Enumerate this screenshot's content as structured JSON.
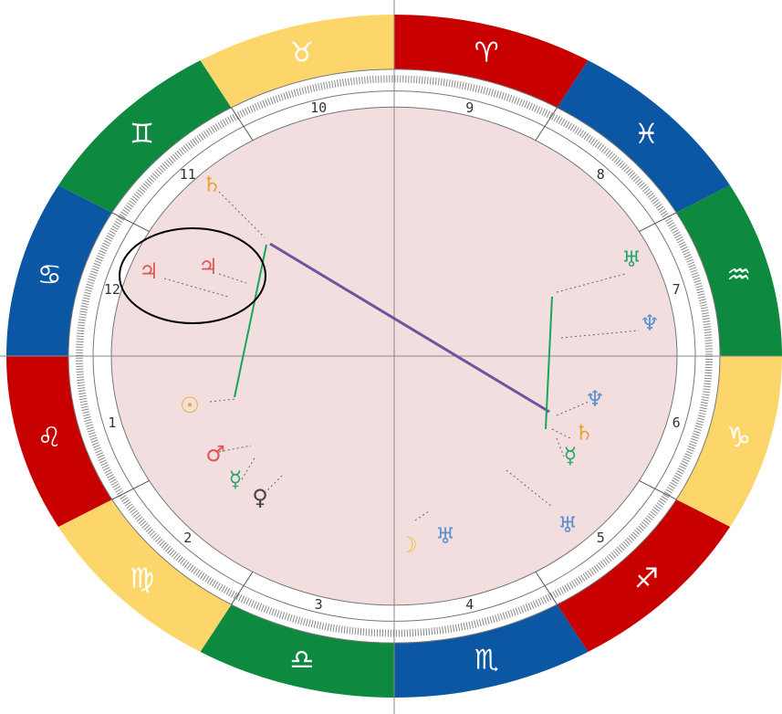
{
  "colors": {
    "red": "#c80000",
    "yellow": "#fcd66a",
    "blue": "#0b57a3",
    "green": "#0d8a3f",
    "inner_fill": "#f2dede",
    "aspect_blue_purple": "#6a559e",
    "aspect_green": "#1aa55c",
    "highlight": "#000000"
  },
  "zodiac": [
    {
      "sign": "aries",
      "glyph": "♈",
      "color": "red"
    },
    {
      "sign": "pisces",
      "glyph": "♓",
      "color": "blue"
    },
    {
      "sign": "aquarius",
      "glyph": "♒",
      "color": "green"
    },
    {
      "sign": "capricorn",
      "glyph": "♑",
      "color": "yellow"
    },
    {
      "sign": "sagittarius",
      "glyph": "♐",
      "color": "red"
    },
    {
      "sign": "scorpio",
      "glyph": "♏",
      "color": "blue"
    },
    {
      "sign": "libra",
      "glyph": "♎",
      "color": "green"
    },
    {
      "sign": "virgo",
      "glyph": "♍",
      "color": "yellow"
    },
    {
      "sign": "leo",
      "glyph": "♌",
      "color": "red"
    },
    {
      "sign": "cancer",
      "glyph": "♋",
      "color": "blue"
    },
    {
      "sign": "gemini",
      "glyph": "♊",
      "color": "green"
    },
    {
      "sign": "taurus",
      "glyph": "♉",
      "color": "yellow"
    }
  ],
  "houses": [
    {
      "number": "1"
    },
    {
      "number": "2"
    },
    {
      "number": "3"
    },
    {
      "number": "4"
    },
    {
      "number": "5"
    },
    {
      "number": "6"
    },
    {
      "number": "7"
    },
    {
      "number": "8"
    },
    {
      "number": "9"
    },
    {
      "number": "10"
    },
    {
      "number": "11"
    },
    {
      "number": "12"
    }
  ],
  "planets": [
    {
      "name": "saturn-upper",
      "glyph": "♄",
      "color": "#e8a33b"
    },
    {
      "name": "jupiter-1",
      "glyph": "♃",
      "color": "#e05555"
    },
    {
      "name": "jupiter-2",
      "glyph": "♃",
      "color": "#e05555"
    },
    {
      "name": "sun",
      "glyph": "☉",
      "color": "#e8b020"
    },
    {
      "name": "mars",
      "glyph": "♂",
      "color": "#e05555"
    },
    {
      "name": "mercury",
      "glyph": "☿",
      "color": "#2aa86a"
    },
    {
      "name": "venus",
      "glyph": "♀",
      "color": "#444444"
    },
    {
      "name": "moon",
      "glyph": "☽",
      "color": "#f2c230"
    },
    {
      "name": "uranus-lower",
      "glyph": "♅",
      "color": "#5a8fd0"
    },
    {
      "name": "uranus-right",
      "glyph": "♅",
      "color": "#5a8fd0"
    },
    {
      "name": "neptune-1",
      "glyph": "♆",
      "color": "#5a8fd0"
    },
    {
      "name": "neptune-2",
      "glyph": "♆",
      "color": "#5a8fd0"
    },
    {
      "name": "uranus-upper",
      "glyph": "♅",
      "color": "#2aa86a"
    },
    {
      "name": "saturn-lower",
      "glyph": "♄",
      "color": "#e8a33b"
    },
    {
      "name": "mercury-right",
      "glyph": "☿",
      "color": "#2aa86a"
    }
  ]
}
